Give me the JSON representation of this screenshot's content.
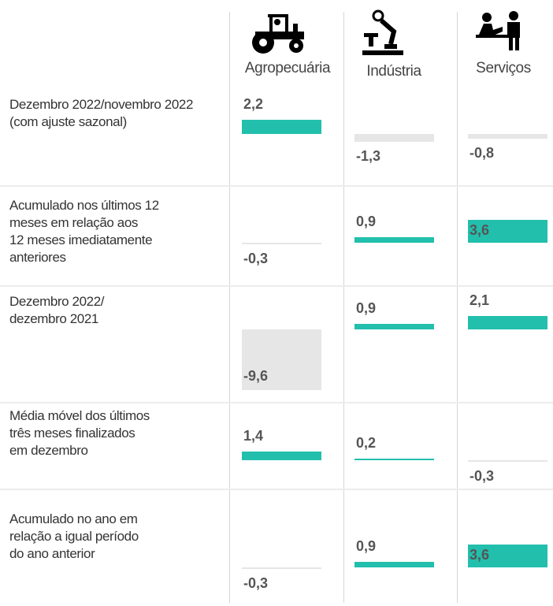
{
  "columns": [
    "Agropecuária",
    "Indústria",
    "Serviços"
  ],
  "colors": {
    "positive": "#22bfad",
    "negative": "#e6e6e6"
  },
  "rows": [
    {
      "label": [
        "Dezembro 2022/novembro 2022",
        "(com ajuste sazonal)"
      ],
      "values": [
        2.2,
        -1.3,
        -0.8
      ],
      "value_labels": [
        "2,2",
        "-1,3",
        "-0,8"
      ]
    },
    {
      "label": [
        "Acumulado nos últimos 12",
        "meses em relação aos",
        "12 meses imediatamente",
        "anteriores"
      ],
      "values": [
        -0.3,
        0.9,
        3.6
      ],
      "value_labels": [
        "-0,3",
        "0,9",
        "3,6"
      ]
    },
    {
      "label": [
        "Dezembro 2022/",
        "dezembro 2021"
      ],
      "values": [
        -9.6,
        0.9,
        2.1
      ],
      "value_labels": [
        "-9,6",
        "0,9",
        "2,1"
      ]
    },
    {
      "label": [
        "Média móvel dos últimos",
        "três meses finalizados",
        "em dezembro"
      ],
      "values": [
        1.4,
        0.2,
        -0.3
      ],
      "value_labels": [
        "1,4",
        "0,2",
        "-0,3"
      ]
    },
    {
      "label": [
        "Acumulado no ano em",
        "relação a igual período",
        "do ano anterior"
      ],
      "values": [
        -0.3,
        0.9,
        3.6
      ],
      "value_labels": [
        "-0,3",
        "0,9",
        "3,6"
      ]
    }
  ]
}
